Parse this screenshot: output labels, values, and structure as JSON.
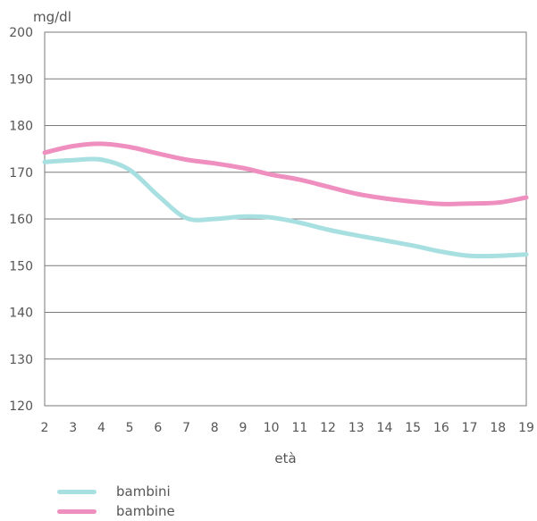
{
  "chart_data": {
    "type": "line",
    "ylabel": "mg/dl",
    "xlabel": "età",
    "x": [
      2,
      3,
      4,
      5,
      6,
      7,
      8,
      9,
      10,
      11,
      12,
      13,
      14,
      15,
      16,
      17,
      18,
      19
    ],
    "xlim": [
      2,
      19
    ],
    "ylim": [
      120,
      200
    ],
    "yticks": [
      120,
      130,
      140,
      150,
      160,
      170,
      180,
      190,
      200
    ],
    "grid": true,
    "legend_position": "bottom-left",
    "series": [
      {
        "name": "bambini",
        "color": "#a8dfe0",
        "values": [
          172.2,
          172.6,
          172.7,
          170.5,
          165.0,
          160.2,
          160.0,
          160.5,
          160.3,
          159.2,
          157.7,
          156.5,
          155.4,
          154.3,
          153.0,
          152.1,
          152.1,
          152.4
        ]
      },
      {
        "name": "bambine",
        "color": "#ef8fc0",
        "values": [
          174.2,
          175.6,
          176.1,
          175.4,
          174.0,
          172.7,
          171.9,
          170.9,
          169.5,
          168.4,
          166.9,
          165.4,
          164.4,
          163.7,
          163.2,
          163.3,
          163.5,
          164.6
        ]
      }
    ]
  }
}
